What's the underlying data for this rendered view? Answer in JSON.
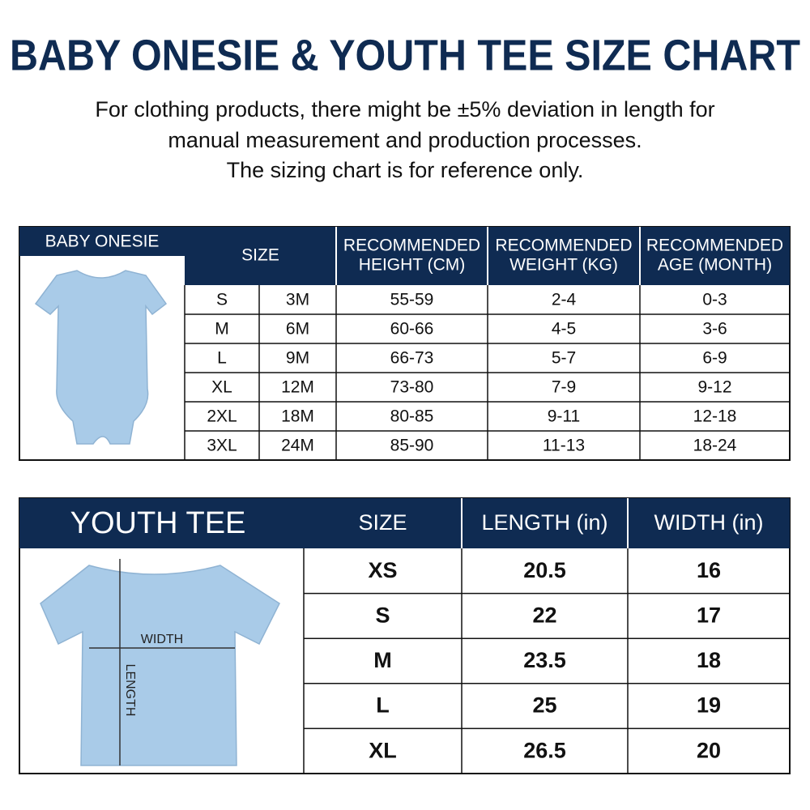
{
  "header": {
    "title": "BABY ONESIE & YOUTH TEE SIZE CHART",
    "note": [
      "For clothing products, there might be ±5% deviation in length for",
      "manual measurement and production processes.",
      "The sizing chart is for reference only."
    ]
  },
  "baby_table": {
    "label": "BABY ONESIE",
    "headers": [
      [
        "SIZE"
      ],
      [
        "RECOMMENDED",
        "HEIGHT (CM)"
      ],
      [
        "RECOMMENDED",
        "WEIGHT (KG)"
      ],
      [
        "RECOMMENDED",
        "AGE (MONTH)"
      ]
    ],
    "rows": [
      [
        "S",
        "3M",
        "55-59",
        "2-4",
        "0-3"
      ],
      [
        "M",
        "6M",
        "60-66",
        "4-5",
        "3-6"
      ],
      [
        "L",
        "9M",
        "66-73",
        "5-7",
        "6-9"
      ],
      [
        "XL",
        "12M",
        "73-80",
        "7-9",
        "9-12"
      ],
      [
        "2XL",
        "18M",
        "80-85",
        "9-11",
        "12-18"
      ],
      [
        "3XL",
        "24M",
        "85-90",
        "11-13",
        "18-24"
      ]
    ]
  },
  "youth_table": {
    "label": "YOUTH TEE",
    "headers": [
      "SIZE",
      "LENGTH (in)",
      "WIDTH (in)"
    ],
    "rows": [
      [
        "XS",
        "20.5",
        "16"
      ],
      [
        "S",
        "22",
        "17"
      ],
      [
        "M",
        "23.5",
        "18"
      ],
      [
        "L",
        "25",
        "19"
      ],
      [
        "XL",
        "26.5",
        "20"
      ]
    ],
    "illustration": {
      "width_label": "WIDTH",
      "length_label": "LENGTH"
    }
  }
}
